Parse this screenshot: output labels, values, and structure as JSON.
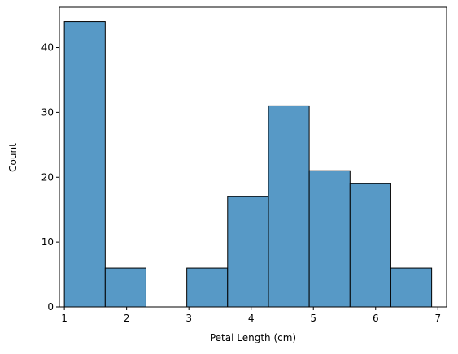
{
  "chart_data": {
    "type": "histogram",
    "xlabel": "Petal Length (cm)",
    "ylabel": "Count",
    "bins": [
      1.0,
      1.656,
      2.311,
      2.967,
      3.622,
      4.278,
      4.933,
      5.589,
      6.244,
      6.9
    ],
    "values": [
      44,
      6,
      0,
      6,
      17,
      31,
      21,
      19,
      6
    ],
    "color": "#5799c6",
    "xlim": [
      0.92,
      7.14
    ],
    "ylim": [
      0,
      46.2
    ],
    "xticks": [
      1,
      2,
      3,
      4,
      5,
      6,
      7
    ],
    "yticks": [
      0,
      10,
      20,
      30,
      40
    ]
  }
}
